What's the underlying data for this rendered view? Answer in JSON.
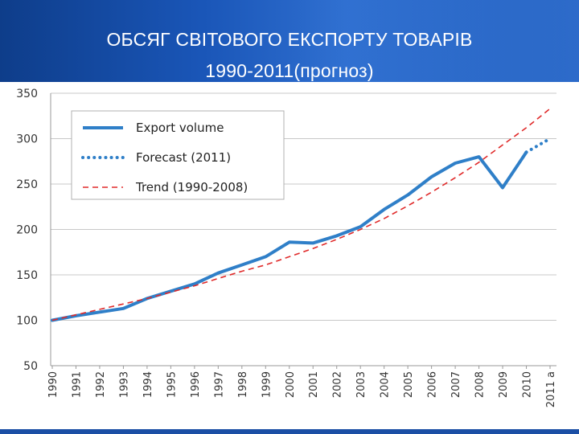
{
  "slide": {
    "title_line1": "ОБСЯГ СВІТОВОГО ЕКСПОРТУ ТОВАРІВ",
    "title_line2": "1990-2011(прогноз)"
  },
  "colors": {
    "header_blue": "#1a56b8",
    "export_line": "#2f7fc8",
    "forecast_dots": "#2f7fc8",
    "trend_line": "#e02a2a",
    "grid": "#c8c8c8"
  },
  "chart_data": {
    "type": "line",
    "x": [
      "1990",
      "1991",
      "1992",
      "1993",
      "1994",
      "1995",
      "1996",
      "1997",
      "1998",
      "1999",
      "2000",
      "2001",
      "2002",
      "2003",
      "2004",
      "2005",
      "2006",
      "2007",
      "2008",
      "2009",
      "2010",
      "2011 a"
    ],
    "y_ticks": [
      50,
      100,
      150,
      200,
      250,
      300,
      350
    ],
    "ylim": [
      50,
      350
    ],
    "grid": true,
    "legend_position": "top-left",
    "series": [
      {
        "name": "Export volume",
        "style": "solid",
        "color": "#2f7fc8",
        "values": [
          100,
          105,
          109,
          113,
          124,
          132,
          140,
          152,
          161,
          170,
          186,
          185,
          193,
          203,
          222,
          238,
          258,
          273,
          280,
          246,
          285,
          null
        ]
      },
      {
        "name": "Forecast (2011)",
        "style": "dotted",
        "color": "#2f7fc8",
        "points": [
          [
            "2010",
            285
          ],
          [
            "2011 a",
            300
          ]
        ]
      },
      {
        "name": "Trend (1990-2008)",
        "style": "dashed",
        "color": "#e02a2a",
        "values": [
          100,
          106,
          112,
          118,
          124,
          131,
          138,
          146,
          154,
          161,
          170,
          179,
          189,
          200,
          212,
          226,
          241,
          257,
          274,
          293,
          312,
          333
        ]
      }
    ]
  }
}
